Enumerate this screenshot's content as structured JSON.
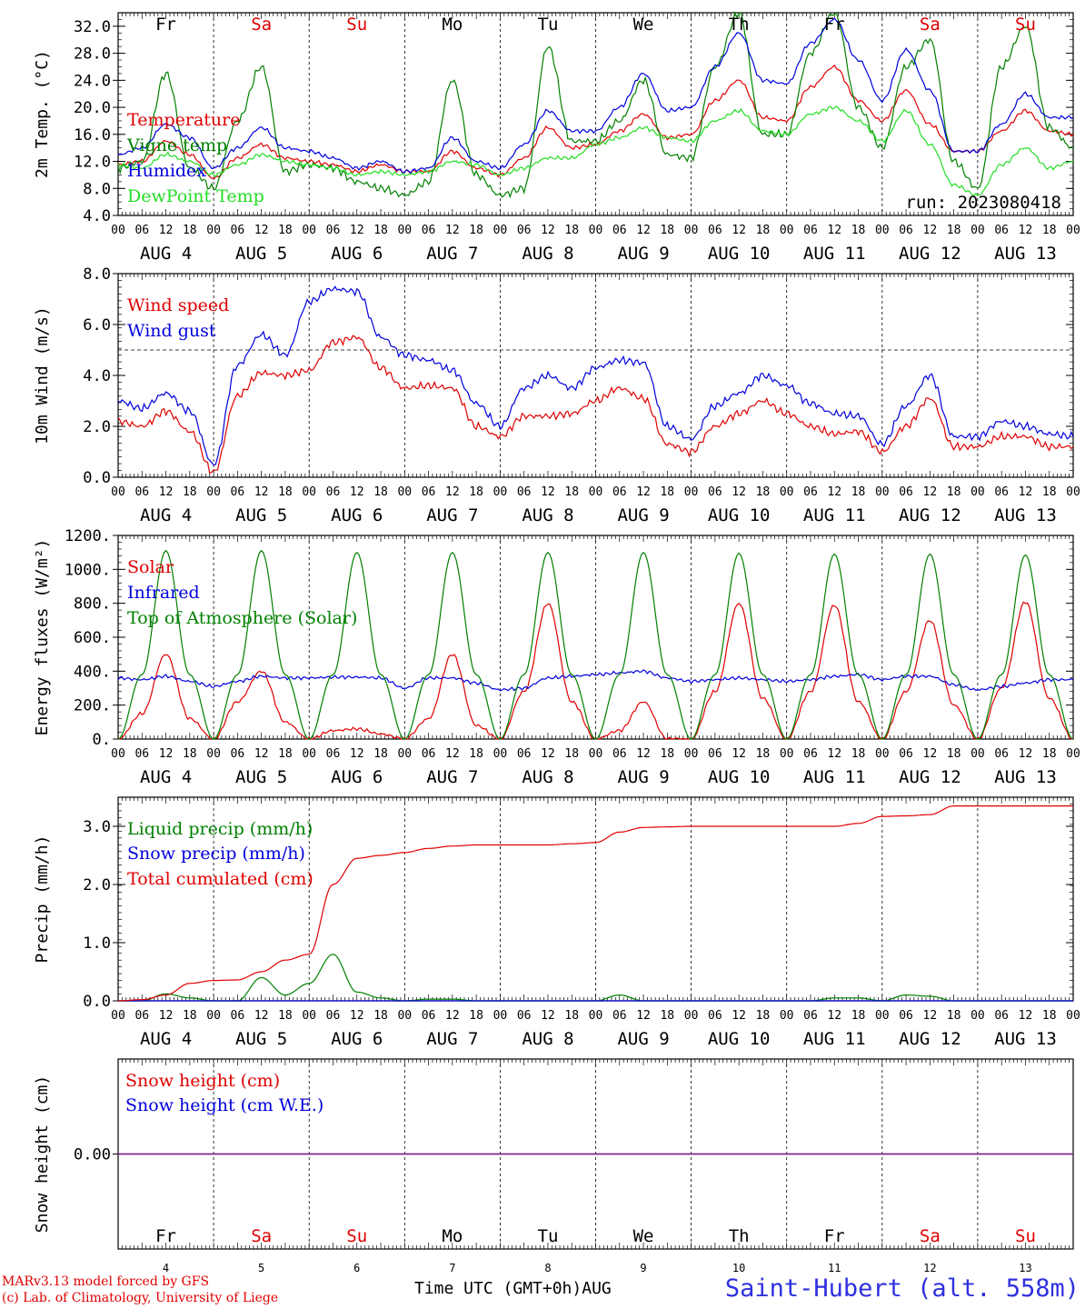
{
  "run_label": "run: 2023080418",
  "station": "Saint-Hubert (alt. 558m)",
  "footer": {
    "model": "MARv3.13 model forced by GFS",
    "lab": "(c) Lab. of Climatology, University of Liege",
    "time_axis": "Time UTC (GMT+0h)",
    "month": "AUG"
  },
  "colors": {
    "red": "#e00000",
    "green": "#008000",
    "blue": "#0000dd",
    "light_green": "#22dd22",
    "purple": "#7a2a8a"
  },
  "days": {
    "names": [
      "Fr",
      "Sa",
      "Su",
      "Mo",
      "Tu",
      "We",
      "Th",
      "Fr",
      "Sa",
      "Su"
    ],
    "weekend": [
      false,
      true,
      true,
      false,
      false,
      false,
      false,
      false,
      true,
      true
    ],
    "dates": [
      "AUG  4",
      "AUG  5",
      "AUG  6",
      "AUG  7",
      "AUG  8",
      "AUG  9",
      "AUG 10",
      "AUG 11",
      "AUG 12",
      "AUG 13"
    ],
    "numbers": [
      "4",
      "5",
      "6",
      "7",
      "8",
      "9",
      "10",
      "11",
      "12",
      "13"
    ],
    "hour_labels": [
      "00",
      "06",
      "12",
      "18"
    ]
  },
  "chart_data": [
    {
      "type": "line",
      "ylabel": "2m Temp. (°C)",
      "ylim": [
        4,
        34
      ],
      "yticks": [
        "4.0",
        "8.0",
        "12.0",
        "16.0",
        "20.0",
        "24.0",
        "28.0",
        "32.0"
      ],
      "x_hours": [
        0,
        6,
        12,
        18,
        24,
        30,
        36,
        42,
        48,
        54,
        60,
        66,
        72,
        78,
        84,
        90,
        96,
        102,
        108,
        114,
        120,
        126,
        132,
        138,
        144,
        150,
        156,
        162,
        168,
        174,
        180,
        186,
        192,
        198,
        204,
        210,
        216,
        222,
        228,
        234,
        240
      ],
      "series": [
        {
          "name": "Temperature",
          "color": "red",
          "values": [
            11.5,
            12.0,
            15.0,
            13.0,
            9.5,
            12.5,
            14.5,
            12.5,
            12.0,
            11.5,
            10.5,
            11.5,
            10.5,
            10.5,
            13.5,
            11.0,
            10.0,
            12.5,
            17.0,
            14.0,
            14.5,
            16.5,
            19.0,
            15.5,
            16.0,
            21.0,
            24.0,
            18.5,
            18.0,
            23.0,
            26.0,
            21.0,
            18.0,
            22.5,
            17.5,
            13.5,
            13.5,
            16.5,
            19.5,
            16.5,
            16.0
          ]
        },
        {
          "name": "Vigne temp",
          "color": "green",
          "values": [
            11.0,
            12.0,
            25.0,
            11.0,
            8.0,
            18.0,
            26.0,
            10.5,
            11.5,
            11.0,
            9.0,
            8.0,
            7.0,
            9.0,
            24.0,
            10.0,
            7.0,
            8.0,
            29.0,
            15.0,
            15.0,
            18.0,
            24.0,
            13.0,
            12.5,
            26.0,
            34.0,
            16.0,
            16.0,
            28.0,
            34.0,
            20.0,
            14.0,
            26.0,
            30.0,
            12.0,
            8.0,
            26.0,
            32.0,
            17.0,
            14.0
          ]
        },
        {
          "name": "Humidex",
          "color": "blue",
          "values": [
            13.0,
            14.0,
            17.5,
            15.5,
            11.0,
            14.0,
            17.0,
            14.0,
            13.5,
            12.5,
            11.0,
            12.0,
            10.5,
            11.0,
            15.5,
            12.0,
            11.0,
            14.5,
            19.5,
            16.5,
            16.5,
            20.0,
            25.0,
            19.5,
            20.0,
            26.0,
            31.0,
            24.0,
            23.5,
            29.5,
            33.0,
            27.0,
            21.0,
            28.5,
            22.5,
            13.5,
            13.5,
            17.5,
            22.0,
            18.5,
            18.5
          ]
        },
        {
          "name": "DewPoint Temp",
          "color": "light_green",
          "values": [
            11.5,
            11.0,
            13.0,
            12.0,
            10.0,
            11.5,
            13.0,
            12.0,
            11.5,
            11.0,
            10.0,
            10.5,
            10.0,
            10.5,
            12.0,
            11.5,
            10.0,
            11.0,
            12.5,
            12.5,
            14.5,
            15.5,
            17.0,
            15.5,
            15.0,
            18.0,
            19.5,
            16.5,
            16.0,
            19.0,
            20.0,
            18.0,
            15.0,
            19.5,
            14.5,
            8.5,
            7.0,
            11.5,
            14.0,
            11.0,
            12.0
          ]
        }
      ]
    },
    {
      "type": "line",
      "ylabel": "10m Wind (m/s)",
      "ylim": [
        0,
        8
      ],
      "yticks": [
        "0.0",
        "2.0",
        "4.0",
        "6.0",
        "8.0"
      ],
      "reference_line": 5.0,
      "x_hours": [
        0,
        6,
        12,
        18,
        24,
        30,
        36,
        42,
        48,
        54,
        60,
        66,
        72,
        78,
        84,
        90,
        96,
        102,
        108,
        114,
        120,
        126,
        132,
        138,
        144,
        150,
        156,
        162,
        168,
        174,
        180,
        186,
        192,
        198,
        204,
        210,
        216,
        222,
        228,
        234,
        240
      ],
      "series": [
        {
          "name": "Wind speed",
          "color": "red",
          "values": [
            2.2,
            2.0,
            2.6,
            1.8,
            0.2,
            3.2,
            4.1,
            4.0,
            4.2,
            5.3,
            5.5,
            4.3,
            3.5,
            3.6,
            3.5,
            2.0,
            1.6,
            2.4,
            2.4,
            2.5,
            3.0,
            3.5,
            3.1,
            1.3,
            1.0,
            2.0,
            2.5,
            3.0,
            2.5,
            2.0,
            1.7,
            1.8,
            1.0,
            2.0,
            3.1,
            1.2,
            1.2,
            1.6,
            1.6,
            1.2,
            1.2
          ]
        },
        {
          "name": "Wind gust",
          "color": "blue",
          "values": [
            3.0,
            2.7,
            3.3,
            2.6,
            0.5,
            4.4,
            5.6,
            4.8,
            6.9,
            7.4,
            7.3,
            5.5,
            4.8,
            4.6,
            4.2,
            2.9,
            2.0,
            3.5,
            4.0,
            3.5,
            4.3,
            4.6,
            4.5,
            2.0,
            1.5,
            2.8,
            3.3,
            4.0,
            3.6,
            2.9,
            2.5,
            2.4,
            1.3,
            2.8,
            4.0,
            1.6,
            1.6,
            2.2,
            2.0,
            1.7,
            1.6
          ]
        }
      ]
    },
    {
      "type": "line",
      "ylabel": "Energy fluxes (W/m²)",
      "ylim": [
        0,
        1200
      ],
      "yticks": [
        "0.",
        "200.",
        "400.",
        "600.",
        "800.",
        "1000.",
        "1200."
      ],
      "x_hours": [
        0,
        6,
        12,
        18,
        24,
        30,
        36,
        42,
        48,
        54,
        60,
        66,
        72,
        78,
        84,
        90,
        96,
        102,
        108,
        114,
        120,
        126,
        132,
        138,
        144,
        150,
        156,
        162,
        168,
        174,
        180,
        186,
        192,
        198,
        204,
        210,
        216,
        222,
        228,
        234,
        240
      ],
      "series": [
        {
          "name": "Solar",
          "color": "red",
          "values": [
            0,
            150,
            500,
            120,
            0,
            220,
            400,
            100,
            0,
            50,
            60,
            30,
            0,
            120,
            500,
            80,
            0,
            280,
            800,
            220,
            0,
            50,
            220,
            0,
            0,
            280,
            800,
            240,
            0,
            280,
            790,
            220,
            0,
            280,
            700,
            200,
            0,
            300,
            810,
            240,
            0
          ]
        },
        {
          "name": "Infrared",
          "color": "blue",
          "values": [
            360,
            350,
            370,
            340,
            310,
            340,
            370,
            360,
            360,
            365,
            365,
            360,
            300,
            360,
            360,
            330,
            290,
            300,
            360,
            370,
            380,
            390,
            400,
            360,
            340,
            350,
            360,
            350,
            340,
            350,
            370,
            380,
            350,
            370,
            370,
            320,
            290,
            310,
            330,
            350,
            350
          ]
        },
        {
          "name": "Top of Atmosphere (Solar)",
          "color": "green",
          "values": [
            0,
            380,
            1110,
            380,
            0,
            380,
            1110,
            380,
            0,
            380,
            1100,
            380,
            0,
            380,
            1100,
            380,
            0,
            380,
            1100,
            380,
            0,
            380,
            1100,
            380,
            0,
            380,
            1095,
            380,
            0,
            380,
            1090,
            380,
            0,
            380,
            1090,
            380,
            0,
            380,
            1085,
            380,
            0
          ]
        }
      ]
    },
    {
      "type": "line",
      "ylabel": "Precip (mm/h)",
      "ylim": [
        0,
        3.5
      ],
      "yticks": [
        "0.0",
        "1.0",
        "2.0",
        "3.0"
      ],
      "x_hours": [
        0,
        6,
        12,
        18,
        24,
        30,
        36,
        42,
        48,
        54,
        60,
        66,
        72,
        78,
        84,
        90,
        96,
        102,
        108,
        114,
        120,
        126,
        132,
        138,
        144,
        150,
        156,
        162,
        168,
        174,
        180,
        186,
        192,
        198,
        204,
        210,
        216,
        222,
        228,
        234,
        240
      ],
      "series": [
        {
          "name": "Liquid precip (mm/h)",
          "color": "green",
          "values": [
            0,
            0,
            0.12,
            0.05,
            0,
            0,
            0.4,
            0.1,
            0.3,
            0.8,
            0.15,
            0.05,
            0,
            0.03,
            0.03,
            0,
            0,
            0,
            0,
            0,
            0,
            0.1,
            0,
            0,
            0,
            0,
            0,
            0,
            0,
            0,
            0.05,
            0.05,
            0,
            0.1,
            0.08,
            0,
            0,
            0,
            0,
            0,
            0
          ]
        },
        {
          "name": "Snow precip (mm/h)",
          "color": "blue",
          "values": [
            0,
            0,
            0,
            0,
            0,
            0,
            0,
            0,
            0,
            0,
            0,
            0,
            0,
            0,
            0,
            0,
            0,
            0,
            0,
            0,
            0,
            0,
            0,
            0,
            0,
            0,
            0,
            0,
            0,
            0,
            0,
            0,
            0,
            0,
            0,
            0,
            0,
            0,
            0,
            0,
            0
          ]
        },
        {
          "name": "Total cumulated (cm)",
          "color": "red",
          "values": [
            0,
            0.02,
            0.1,
            0.3,
            0.35,
            0.36,
            0.5,
            0.7,
            0.8,
            2.0,
            2.45,
            2.5,
            2.55,
            2.62,
            2.66,
            2.68,
            2.68,
            2.68,
            2.68,
            2.7,
            2.72,
            2.9,
            2.98,
            2.99,
            3.0,
            3.0,
            3.0,
            3.0,
            3.0,
            3.0,
            3.0,
            3.05,
            3.17,
            3.18,
            3.2,
            3.35,
            3.35,
            3.35,
            3.35,
            3.35,
            3.35
          ]
        }
      ]
    },
    {
      "type": "line",
      "ylabel": "Snow height (cm)",
      "ylim": [
        -1,
        1
      ],
      "yticks": [
        "0.00"
      ],
      "x_hours": [
        0,
        240
      ],
      "series": [
        {
          "name": "Snow height (cm)",
          "color": "red",
          "values": [
            0,
            0
          ]
        },
        {
          "name": "Snow height (cm W.E.)",
          "color": "blue",
          "values": [
            0,
            0
          ]
        }
      ]
    }
  ]
}
